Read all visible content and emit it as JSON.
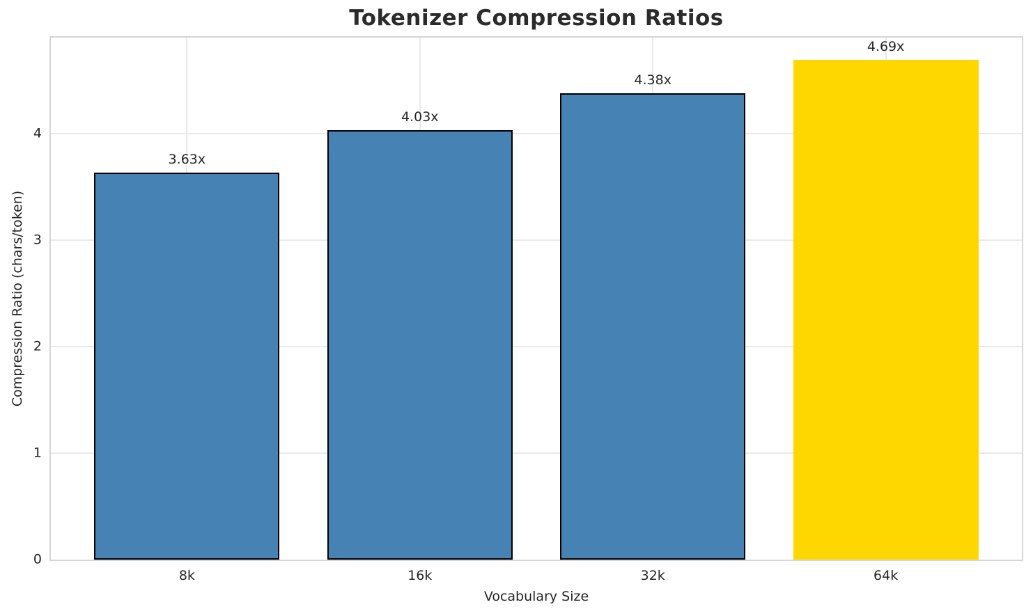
{
  "chart_data": {
    "type": "bar",
    "title": "Tokenizer Compression Ratios",
    "xlabel": "Vocabulary Size",
    "ylabel": "Compression Ratio (chars/token)",
    "categories": [
      "8k",
      "16k",
      "32k",
      "64k"
    ],
    "values": [
      3.63,
      4.03,
      4.38,
      4.69
    ],
    "bar_labels": [
      "3.63x",
      "4.03x",
      "4.38x",
      "4.69x"
    ],
    "yticks": [
      0,
      1,
      2,
      3,
      4
    ],
    "ylim": [
      0,
      4.9
    ],
    "grid": true,
    "legend": "none",
    "bar_colors": [
      "#4682b4",
      "#4682b4",
      "#4682b4",
      "#ffd700"
    ],
    "bar_edge_colors": [
      "#000000",
      "#000000",
      "#000000",
      "none"
    ],
    "highlight_color": "#ffd700",
    "base_color": "#4682b4"
  }
}
